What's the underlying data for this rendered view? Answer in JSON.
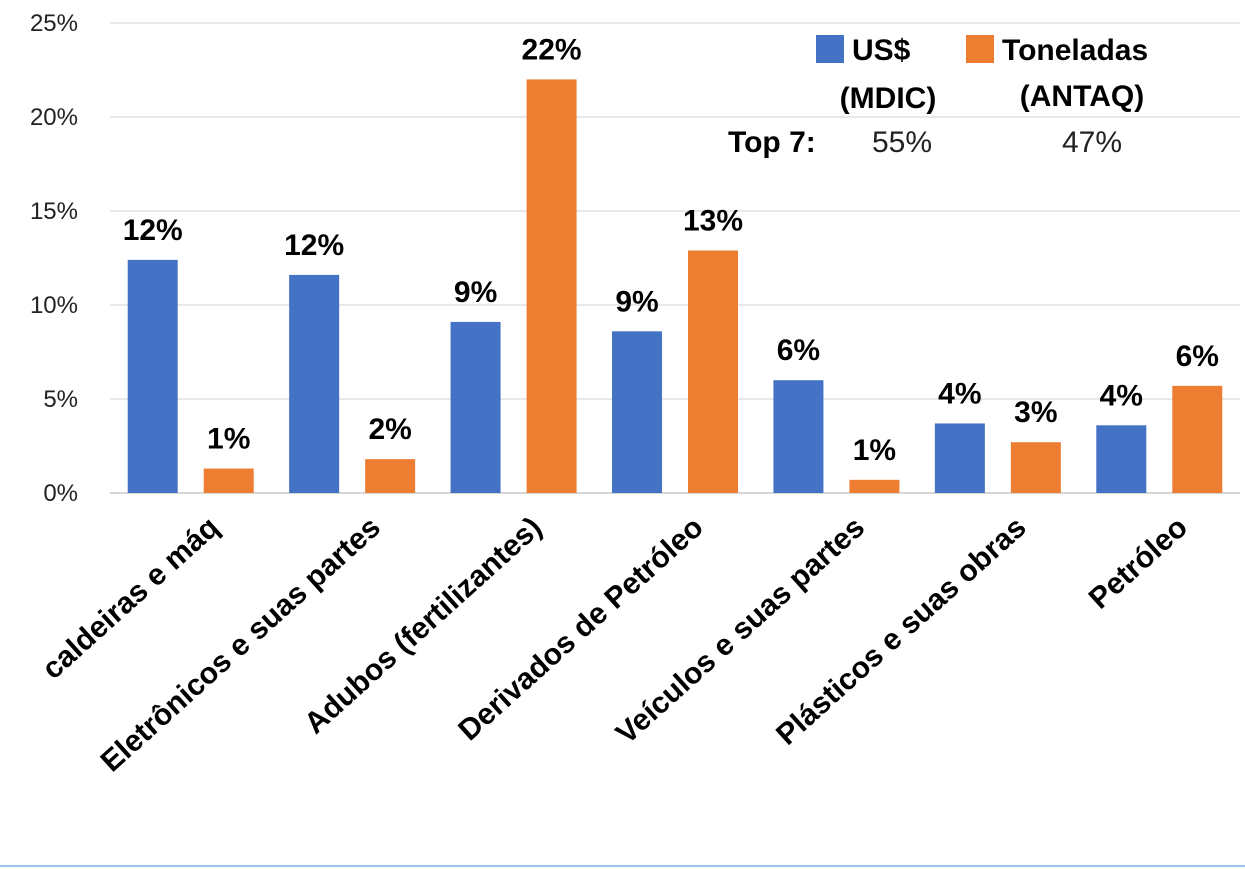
{
  "chart_data": {
    "type": "bar",
    "categories": [
      "caldeiras e máq",
      "Eletrônicos e suas partes",
      "Adubos (fertilizantes)",
      "Derivados de Petróleo",
      "Veículos e suas partes",
      "Plásticos e suas obras",
      "Petróleo"
    ],
    "series": [
      {
        "name": "US$ (MDIC)",
        "legend_lines": [
          "US$",
          "(MDIC)"
        ],
        "color": "#4472C4",
        "values": [
          12.4,
          11.6,
          9.1,
          8.6,
          6.0,
          3.7,
          3.6
        ],
        "labels": [
          "12%",
          "12%",
          "9%",
          "9%",
          "6%",
          "4%",
          "4%"
        ]
      },
      {
        "name": "Toneladas (ANTAQ)",
        "legend_lines": [
          "Toneladas",
          "(ANTAQ)"
        ],
        "color": "#ED7D31",
        "values": [
          1.3,
          1.8,
          22.0,
          12.9,
          0.7,
          2.7,
          5.7
        ],
        "labels": [
          "1%",
          "2%",
          "22%",
          "13%",
          "1%",
          "3%",
          "6%"
        ]
      }
    ],
    "ylim": [
      0,
      25
    ],
    "yticks": [
      0,
      5,
      10,
      15,
      20,
      25
    ],
    "ytick_labels": [
      "0%",
      "5%",
      "10%",
      "15%",
      "20%",
      "25%"
    ],
    "grid": true,
    "legend_position": "top-right",
    "annotation": {
      "label": "Top 7:",
      "values": [
        "55%",
        "47%"
      ]
    },
    "xlabel": "",
    "ylabel": "",
    "title": ""
  }
}
